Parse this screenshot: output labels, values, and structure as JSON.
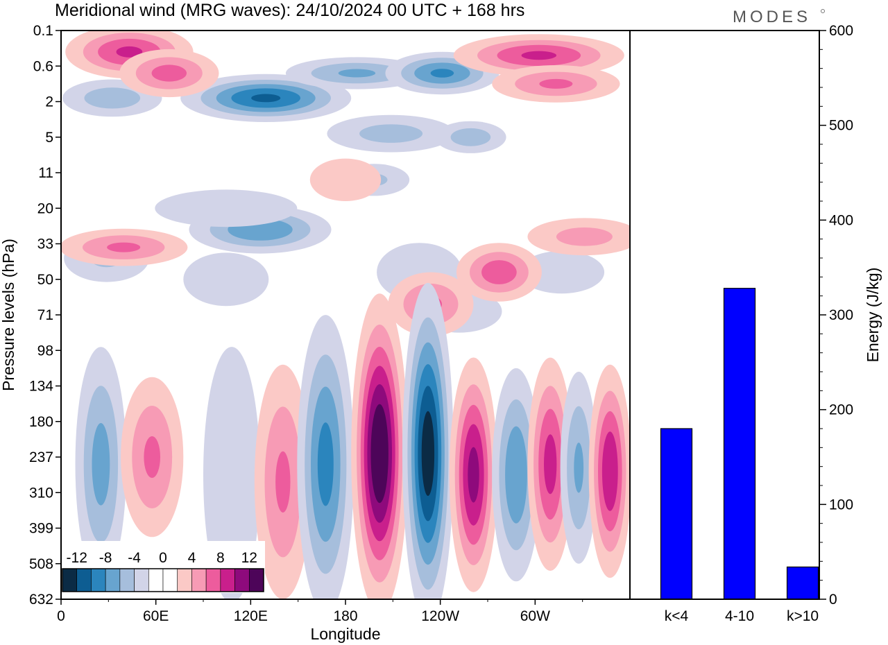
{
  "title": "Meridional wind (MRG waves):  24/10/2024  00 UTC  + 168 hrs",
  "brand": "MODES",
  "colors": {
    "frame": "#000000",
    "bar": "#0000ff",
    "levels": [
      "#0b2b45",
      "#0d5d92",
      "#2b85bd",
      "#68a4cf",
      "#a6bedc",
      "#d2d4e8",
      "#ffffff",
      "#ffffff",
      "#fbc9c6",
      "#f79bb5",
      "#ed5c9d",
      "#c91f8c",
      "#8e0a7c",
      "#4d0559"
    ]
  },
  "chart_data": [
    {
      "type": "heatmap",
      "title": "Meridional wind (MRG waves):  24/10/2024  00 UTC  + 168 hrs",
      "xlabel": "Longitude",
      "ylabel": "Pressure levels (hPa)",
      "x_ticks": [
        "0",
        "60E",
        "120E",
        "180",
        "120W",
        "60W"
      ],
      "y_ticks": [
        "0.1",
        "0.6",
        "2",
        "5",
        "11",
        "20",
        "33",
        "50",
        "71",
        "98",
        "134",
        "180",
        "237",
        "310",
        "399",
        "508",
        "632"
      ],
      "colorbar": {
        "tick_labels": [
          "-12",
          "-8",
          "-4",
          "0",
          "4",
          "8",
          "12"
        ],
        "bounds": [
          -14,
          -12,
          -10,
          -8,
          -6,
          -4,
          -2,
          0,
          2,
          4,
          6,
          8,
          10,
          12,
          14
        ]
      },
      "features": [
        {
          "lon": 0.36,
          "level": 1.9,
          "v": -10.5,
          "wl": 0.6,
          "wp": 0.45
        },
        {
          "lon": 0.09,
          "level": 1.9,
          "v": -5.5,
          "wl": 0.35,
          "wp": 0.35
        },
        {
          "lon": 0.52,
          "level": 1.2,
          "v": -6.5,
          "wl": 0.5,
          "wp": 0.3
        },
        {
          "lon": 0.67,
          "level": 1.2,
          "v": -8.5,
          "wl": 0.4,
          "wp": 0.4
        },
        {
          "lon": 0.58,
          "level": 2.9,
          "v": -5,
          "wl": 0.45,
          "wp": 0.35
        },
        {
          "lon": 0.72,
          "level": 3,
          "v": -5.5,
          "wl": 0.25,
          "wp": 0.3
        },
        {
          "lon": 0.55,
          "level": 4.2,
          "v": -4.5,
          "wl": 0.25,
          "wp": 0.3
        },
        {
          "lon": 0.35,
          "level": 5.6,
          "v": -8,
          "wl": 0.5,
          "wp": 0.45
        },
        {
          "lon": 0.29,
          "level": 5,
          "v": -4,
          "wl": 0.5,
          "wp": 0.35
        },
        {
          "lon": 0.08,
          "level": 6.4,
          "v": -4.5,
          "wl": 0.3,
          "wp": 0.45
        },
        {
          "lon": 0.29,
          "level": 7,
          "v": -3,
          "wl": 0.3,
          "wp": 0.5
        },
        {
          "lon": 0.63,
          "level": 6.8,
          "v": -3,
          "wl": 0.3,
          "wp": 0.55
        },
        {
          "lon": 0.7,
          "level": 7.9,
          "v": -3,
          "wl": 0.3,
          "wp": 0.4
        },
        {
          "lon": 0.88,
          "level": 6.8,
          "v": -3,
          "wl": 0.3,
          "wp": 0.4
        },
        {
          "lon": 0.12,
          "level": 0.6,
          "v": 8.5,
          "wl": 0.45,
          "wp": 0.5
        },
        {
          "lon": 0.19,
          "level": 1.2,
          "v": 7,
          "wl": 0.35,
          "wp": 0.45
        },
        {
          "lon": 0.84,
          "level": 0.7,
          "v": 8.5,
          "wl": 0.6,
          "wp": 0.4
        },
        {
          "lon": 0.87,
          "level": 1.5,
          "v": 6.5,
          "wl": 0.45,
          "wp": 0.35
        },
        {
          "lon": 0.11,
          "level": 6.1,
          "v": 6.5,
          "wl": 0.45,
          "wp": 0.35
        },
        {
          "lon": 0.5,
          "level": 4.2,
          "v": 3.5,
          "wl": 0.25,
          "wp": 0.4
        },
        {
          "lon": 0.77,
          "level": 6.8,
          "v": 7.5,
          "wl": 0.3,
          "wp": 0.55
        },
        {
          "lon": 0.65,
          "level": 7.7,
          "v": 6.5,
          "wl": 0.3,
          "wp": 0.6
        },
        {
          "lon": 0.92,
          "level": 5.8,
          "v": 5,
          "wl": 0.4,
          "wp": 0.35
        },
        {
          "lon": 0.07,
          "level": 12.2,
          "v": -7,
          "wl": 0.18,
          "wp": 2.2
        },
        {
          "lon": 0.16,
          "level": 12,
          "v": 6.5,
          "wl": 0.22,
          "wp": 1.5
        },
        {
          "lon": 0.3,
          "level": 12.5,
          "v": -3,
          "wl": 0.2,
          "wp": 2.4
        },
        {
          "lon": 0.39,
          "level": 12.7,
          "v": 6.5,
          "wl": 0.2,
          "wp": 2.2
        },
        {
          "lon": 0.465,
          "level": 12.2,
          "v": -9,
          "wl": 0.2,
          "wp": 2.8
        },
        {
          "lon": 0.56,
          "level": 11.9,
          "v": 14.5,
          "wl": 0.2,
          "wp": 3
        },
        {
          "lon": 0.645,
          "level": 11.9,
          "v": -13.5,
          "wl": 0.18,
          "wp": 3.2
        },
        {
          "lon": 0.725,
          "level": 12.5,
          "v": 11,
          "wl": 0.17,
          "wp": 2.2
        },
        {
          "lon": 0.8,
          "level": 12.5,
          "v": -8,
          "wl": 0.17,
          "wp": 2
        },
        {
          "lon": 0.86,
          "level": 12.2,
          "v": 9,
          "wl": 0.16,
          "wp": 2
        },
        {
          "lon": 0.91,
          "level": 12.3,
          "v": -6.5,
          "wl": 0.13,
          "wp": 1.8
        },
        {
          "lon": 0.965,
          "level": 12.4,
          "v": 10,
          "wl": 0.15,
          "wp": 2
        }
      ]
    },
    {
      "type": "bar",
      "categories": [
        "k<4",
        "4-10",
        "k>10"
      ],
      "values": [
        180,
        328,
        34
      ],
      "ylabel": "Energy (J/kg)",
      "ylim": [
        0,
        600
      ],
      "y_ticks": [
        "0",
        "100",
        "200",
        "300",
        "400",
        "500",
        "600"
      ]
    }
  ]
}
